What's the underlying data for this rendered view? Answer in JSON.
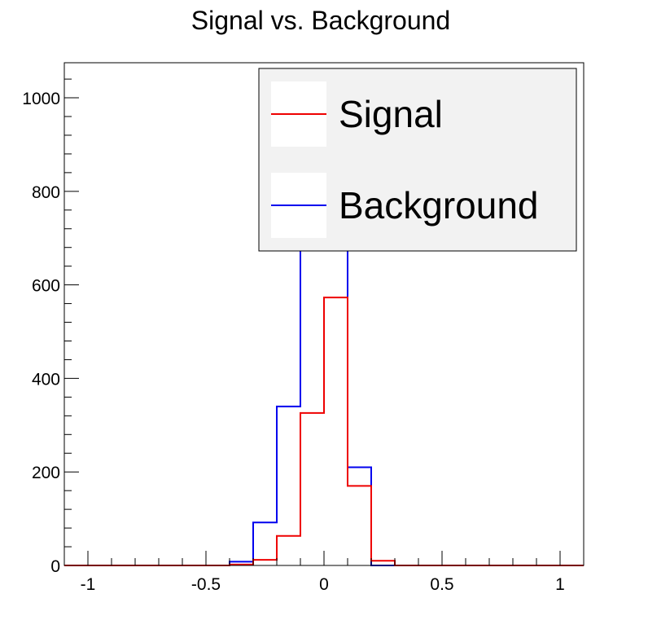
{
  "chart_data": {
    "type": "histogram",
    "title": "Signal vs. Background",
    "xlabel": "",
    "ylabel": "",
    "xlim": [
      -1.1,
      1.1
    ],
    "ylim": [
      0,
      1075
    ],
    "x_ticks": [
      -1,
      -0.5,
      0,
      0.5,
      1
    ],
    "x_tick_labels": [
      "-1",
      "-0.5",
      "0",
      "0.5",
      "1"
    ],
    "y_ticks": [
      0,
      200,
      400,
      600,
      800,
      1000
    ],
    "y_tick_labels": [
      "0",
      "200",
      "400",
      "600",
      "800",
      "1000"
    ],
    "x_minor_step": 0.1,
    "y_minor_step": 40,
    "bin_edges": [
      -1.1,
      -1.0,
      -0.9,
      -0.8,
      -0.7,
      -0.6,
      -0.5,
      -0.4,
      -0.3,
      -0.2,
      -0.1,
      0.0,
      0.1,
      0.2,
      0.3,
      0.4,
      0.5,
      0.6,
      0.7,
      0.8,
      0.9,
      1.0,
      1.1
    ],
    "series": [
      {
        "name": "Background",
        "color": "#0000ee",
        "values": [
          0,
          0,
          0,
          0,
          0,
          0,
          0,
          8,
          92,
          340,
          800,
          800,
          210,
          0,
          0,
          0,
          0,
          0,
          0,
          0,
          0,
          0
        ]
      },
      {
        "name": "Signal",
        "color": "#ee0000",
        "values": [
          0,
          0,
          0,
          0,
          0,
          0,
          0,
          2,
          12,
          63,
          326,
          573,
          170,
          10,
          0,
          0,
          0,
          0,
          0,
          0,
          0,
          0
        ]
      }
    ],
    "grid": false,
    "legend": {
      "position": "top-right",
      "entries": [
        {
          "label": "Signal",
          "color": "#ee0000"
        },
        {
          "label": "Background",
          "color": "#0000ee"
        }
      ]
    }
  }
}
